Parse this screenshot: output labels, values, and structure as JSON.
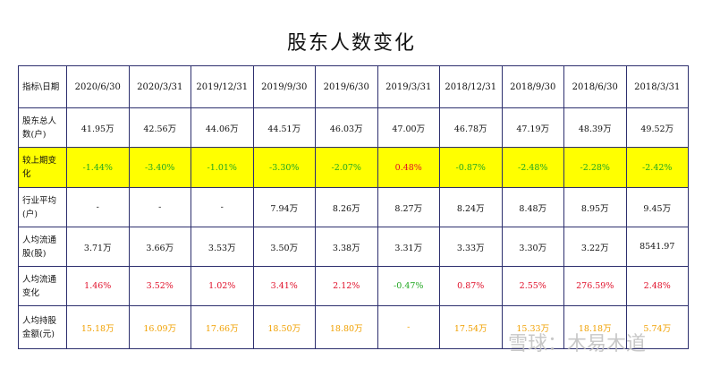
{
  "title": "股东人数变化",
  "header": {
    "corner": "指标\\日期",
    "dates": [
      "2020/6/30",
      "2020/3/31",
      "2019/12/31",
      "2019/9/30",
      "2019/6/30",
      "2019/3/31",
      "2018/12/31",
      "2018/9/30",
      "2018/6/30",
      "2018/3/31"
    ]
  },
  "rows": [
    {
      "label": "股东总人数(户)",
      "kind": "std",
      "values": [
        "41.95万",
        "42.56万",
        "44.06万",
        "44.51万",
        "46.03万",
        "47.00万",
        "46.78万",
        "47.19万",
        "48.39万",
        "49.52万"
      ],
      "colors": [
        "",
        "",
        "",
        "",
        "",
        "",
        "",
        "",
        "",
        ""
      ]
    },
    {
      "label": "较上期变化",
      "kind": "change",
      "values": [
        "-1.44%",
        "-3.40%",
        "-1.01%",
        "-3.30%",
        "-2.07%",
        "0.48%",
        "-0.87%",
        "-2.48%",
        "-2.28%",
        "-2.42%"
      ],
      "colors": [
        "green",
        "green",
        "green",
        "green",
        "green",
        "red",
        "green",
        "green",
        "green",
        "green"
      ]
    },
    {
      "label": "行业平均(户)",
      "kind": "std",
      "values": [
        "-",
        "-",
        "-",
        "7.94万",
        "8.26万",
        "8.27万",
        "8.24万",
        "8.48万",
        "8.95万",
        "9.45万"
      ],
      "colors": [
        "",
        "",
        "",
        "",
        "",
        "",
        "",
        "",
        "",
        ""
      ]
    },
    {
      "label": "人均流通股(股)",
      "kind": "std",
      "values": [
        "3.71万",
        "3.66万",
        "3.53万",
        "3.50万",
        "3.38万",
        "3.31万",
        "3.33万",
        "3.30万",
        "3.22万",
        "8541.97"
      ],
      "colors": [
        "",
        "",
        "",
        "",
        "",
        "",
        "",
        "",
        "",
        ""
      ]
    },
    {
      "label": "人均流通变化",
      "kind": "std",
      "values": [
        "1.46%",
        "3.52%",
        "1.02%",
        "3.41%",
        "2.12%",
        "-0.47%",
        "0.87%",
        "2.55%",
        "276.59%",
        "2.48%"
      ],
      "colors": [
        "red",
        "red",
        "red",
        "red",
        "red",
        "green",
        "red",
        "red",
        "red",
        "red"
      ]
    },
    {
      "label": "人均持股金额(元)",
      "kind": "hold",
      "values": [
        "15.18万",
        "16.09万",
        "17.66万",
        "18.50万",
        "18.80万",
        "-",
        "17.54万",
        "15.33万",
        "18.18万",
        "5.74万"
      ],
      "colors": [
        "orange",
        "orange",
        "orange",
        "orange",
        "orange",
        "orange",
        "orange",
        "orange",
        "orange",
        "orange"
      ]
    }
  ],
  "watermark": "雪球：木易木道"
}
